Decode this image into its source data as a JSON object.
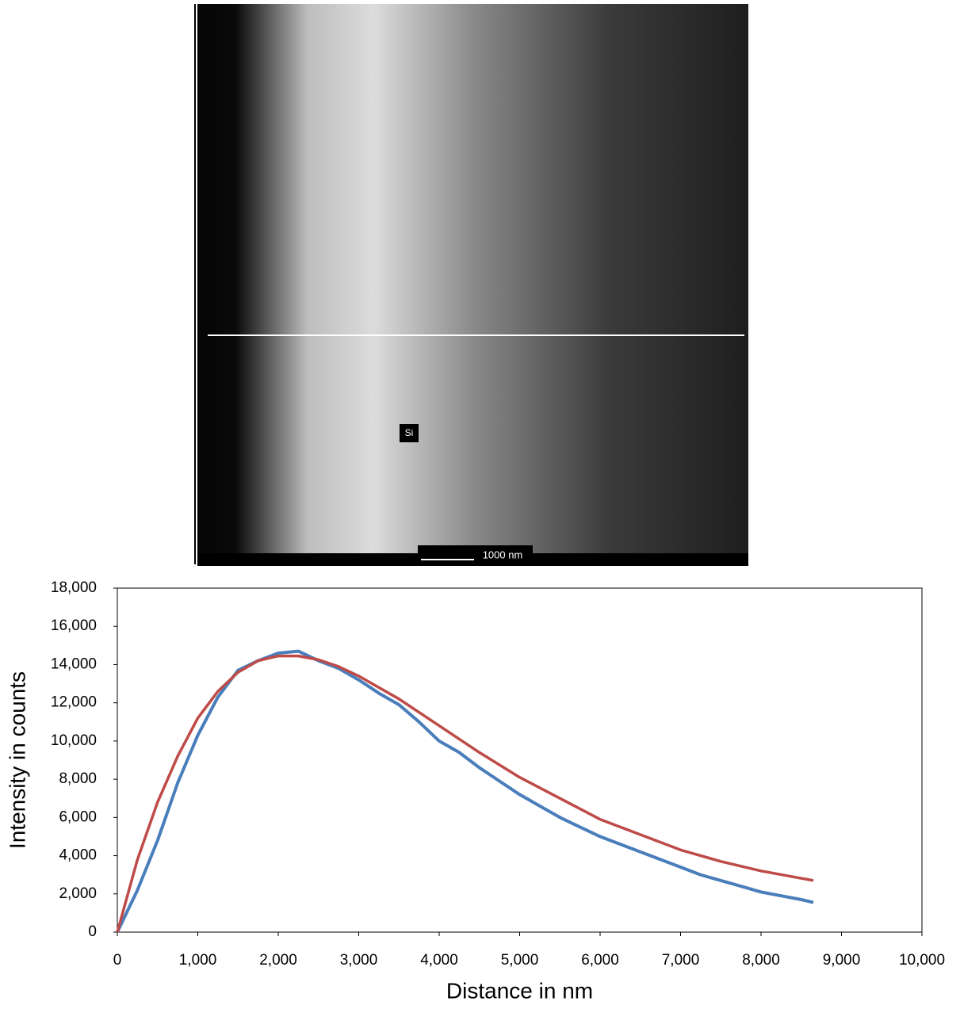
{
  "image": {
    "label": "Si",
    "scale_bar": "1000 nm"
  },
  "chart_data": {
    "type": "line",
    "x_label": "Distance in nm",
    "y_label": "Intensity in counts",
    "xlim": [
      0,
      10000
    ],
    "ylim": [
      0,
      18000
    ],
    "xticks": [
      0,
      {
        "value": 1000,
        "label": "1,000"
      },
      {
        "value": 2000,
        "label": "2,000"
      },
      {
        "value": 3000,
        "label": "3,000"
      },
      {
        "value": 4000,
        "label": "4,000"
      },
      {
        "value": 5000,
        "label": "5,000"
      },
      {
        "value": 6000,
        "label": "6,000"
      },
      {
        "value": 7000,
        "label": "7,000"
      },
      {
        "value": 8000,
        "label": "8,000"
      },
      {
        "value": 9000,
        "label": "9,000"
      },
      {
        "value": 10000,
        "label": "10,000"
      }
    ],
    "yticks": [
      0,
      {
        "value": 2000,
        "label": "2,000"
      },
      {
        "value": 4000,
        "label": "4,000"
      },
      {
        "value": 6000,
        "label": "6,000"
      },
      {
        "value": 8000,
        "label": "8,000"
      },
      {
        "value": 10000,
        "label": "10,000"
      },
      {
        "value": 12000,
        "label": "12,000"
      },
      {
        "value": 14000,
        "label": "14,000"
      },
      {
        "value": 16000,
        "label": "16,000"
      },
      {
        "value": 18000,
        "label": "18,000"
      }
    ],
    "series": [
      {
        "color": "#4a7ebb",
        "x": [
          0,
          250,
          500,
          750,
          1000,
          1250,
          1500,
          1750,
          2000,
          2250,
          2500,
          2750,
          3000,
          3250,
          3500,
          3750,
          4000,
          4250,
          4500,
          4750,
          5000,
          5250,
          5500,
          5750,
          6000,
          6250,
          6500,
          6750,
          7000,
          7250,
          7500,
          7750,
          8000,
          8250,
          8500,
          8650
        ],
        "values": [
          0,
          2200,
          4800,
          7800,
          10300,
          12300,
          13700,
          14200,
          14600,
          14700,
          14200,
          13800,
          13200,
          12500,
          11900,
          11000,
          10000,
          9400,
          8600,
          7900,
          7200,
          6600,
          6000,
          5500,
          5000,
          4600,
          4200,
          3800,
          3400,
          3000,
          2700,
          2400,
          2100,
          1900,
          1700,
          1550
        ]
      },
      {
        "color": "#be4b48",
        "x": [
          0,
          250,
          500,
          750,
          1000,
          1250,
          1500,
          1750,
          2000,
          2250,
          2500,
          2750,
          3000,
          3250,
          3500,
          3750,
          4000,
          4500,
          5000,
          5500,
          6000,
          6500,
          7000,
          7500,
          8000,
          8650
        ],
        "values": [
          0,
          3800,
          6800,
          9200,
          11200,
          12600,
          13600,
          14200,
          14450,
          14450,
          14250,
          13900,
          13400,
          12800,
          12200,
          11500,
          10800,
          9400,
          8100,
          7000,
          5900,
          5100,
          4300,
          3700,
          3200,
          2700
        ]
      }
    ]
  }
}
